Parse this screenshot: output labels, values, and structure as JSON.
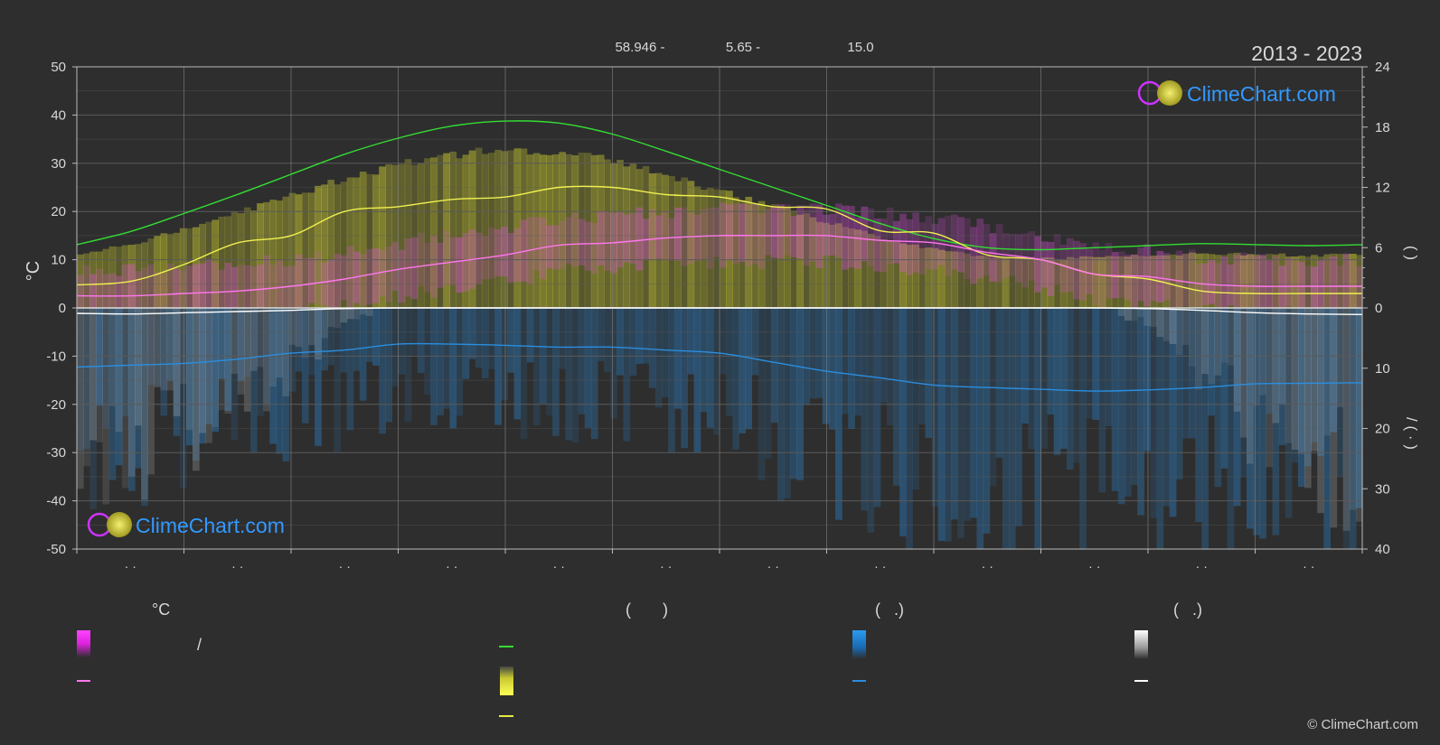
{
  "header": {
    "lat": "58.946 -",
    "lon": "5.65 -",
    "alt": "15.0",
    "years": "2013 - 2023"
  },
  "brand": {
    "name": "ClimeChart.com",
    "copyright": "© ClimeChart.com"
  },
  "colors": {
    "background": "#2e2e2e",
    "grid": "#5a5a5a",
    "daylight": "#33dd33",
    "sunshine": "#f0f050",
    "temp_mean": "#ff77ee",
    "temp_band": "#e050e0",
    "sun_band": "#c8c832",
    "rain": "#2a8ee0",
    "snow": "#ffffff",
    "brand": "#3399ff"
  },
  "chart_data": {
    "type": "area",
    "x": [
      1,
      2,
      3,
      4,
      5,
      6,
      7,
      8,
      9,
      10,
      11,
      12,
      13,
      14,
      15,
      16,
      17,
      18,
      19,
      20,
      21,
      22,
      23,
      24,
      25
    ],
    "x_ticks": [
      "· ·",
      "· ·",
      "· ·",
      "· ·",
      "· ·",
      "· ·",
      "· ·",
      "· ·",
      "· ·",
      "· ·",
      "· ·",
      "· ·"
    ],
    "y_left": {
      "label": "°C",
      "ylim": [
        -50,
        50
      ],
      "ticks": [
        50,
        40,
        30,
        20,
        10,
        0,
        -10,
        -20,
        -30,
        -40,
        -50
      ]
    },
    "y_right_top": {
      "label": "( )",
      "ylim": [
        0,
        24
      ],
      "ticks": [
        24,
        18,
        12,
        6,
        0
      ]
    },
    "y_right_bottom": {
      "label": "/ ( · )",
      "ylim": [
        0,
        40
      ],
      "ticks": [
        10,
        20,
        30,
        40
      ]
    },
    "grid": true,
    "series": [
      {
        "key": "daylight",
        "axis": "right_top",
        "values": [
          6.3,
          7.6,
          9.4,
          11.3,
          13.3,
          15.3,
          16.9,
          18.1,
          18.6,
          18.4,
          17.3,
          15.6,
          13.8,
          12.0,
          10.2,
          8.4,
          6.9,
          6.0,
          5.8,
          6.0,
          6.2,
          6.4,
          6.3,
          6.2,
          6.3
        ]
      },
      {
        "key": "sunshine",
        "axis": "left",
        "values": [
          4.8,
          5.5,
          9,
          13.5,
          15,
          20,
          21,
          22.5,
          23,
          25,
          25,
          23.5,
          23,
          21,
          20.5,
          16,
          15.5,
          11,
          10,
          7,
          6,
          3.5,
          3,
          3,
          3
        ]
      },
      {
        "key": "temp_mean",
        "axis": "left",
        "values": [
          2.5,
          2.5,
          3,
          3.5,
          4.5,
          6,
          8,
          9.5,
          11,
          13,
          13.5,
          14.5,
          15,
          15,
          15,
          14,
          13.5,
          11.5,
          10,
          7,
          6.5,
          5,
          4.5,
          4.5,
          4.5
        ]
      },
      {
        "key": "rain",
        "axis": "right_bottom",
        "values": [
          9.8,
          9.5,
          9.2,
          8.5,
          7.5,
          7,
          6,
          6,
          6.2,
          6.5,
          6.5,
          7,
          7.5,
          9,
          10.5,
          11.6,
          12.8,
          13.2,
          13.5,
          13.8,
          13.6,
          13.2,
          12.6,
          12.5,
          12.4
        ]
      },
      {
        "key": "snow",
        "axis": "right_bottom",
        "values": [
          0.9,
          1.0,
          0.8,
          0.6,
          0.4,
          0.1,
          0,
          0,
          0,
          0,
          0,
          0,
          0,
          0,
          0,
          0,
          0,
          0,
          0,
          0,
          0.1,
          0.4,
          0.8,
          1.0,
          1.1
        ]
      }
    ]
  },
  "legend": {
    "col1": {
      "title": "°C",
      "band_label": "/",
      "line_label": ""
    },
    "col2": {
      "title": "(       )",
      "daylight_label": "",
      "sun_band_label": "",
      "sun_line_label": ""
    },
    "col3": {
      "title": "(   .)",
      "rain_band_label": "",
      "rain_line_label": ""
    },
    "col4": {
      "title": "(   .)",
      "snow_band_label": "",
      "snow_line_label": ""
    }
  }
}
